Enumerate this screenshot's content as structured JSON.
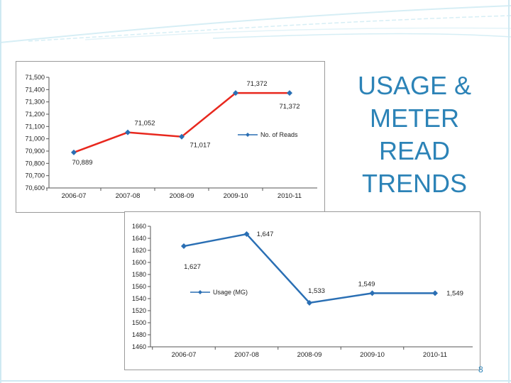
{
  "slide": {
    "title": "USAGE &\nMETER READ\nTRENDS",
    "page_number": "8",
    "accent_color": "#2c83b7",
    "bg_line_color": "#cfe9f2"
  },
  "chart_data": [
    {
      "id": "reads",
      "type": "line",
      "title": "",
      "xlabel": "",
      "ylabel": "",
      "categories": [
        "2006-07",
        "2007-08",
        "2008-09",
        "2009-10",
        "2010-11"
      ],
      "series": [
        {
          "name": "No. of Reads",
          "color": "#e8281e",
          "values": [
            70889,
            71052,
            71017,
            71372,
            71372
          ],
          "labels": [
            "70,889",
            "71,052",
            "71,017",
            "71,372",
            "71,372"
          ]
        }
      ],
      "ylim": [
        70600,
        71500
      ],
      "yticks": [
        70600,
        70700,
        70800,
        70900,
        71000,
        71100,
        71200,
        71300,
        71400,
        71500
      ],
      "ytick_labels": [
        "70,600",
        "70,700",
        "70,800",
        "70,900",
        "71,000",
        "71,100",
        "71,200",
        "71,300",
        "71,400",
        "71,500"
      ],
      "legend": "No. of Reads",
      "grid": false
    },
    {
      "id": "usage",
      "type": "line",
      "title": "",
      "xlabel": "",
      "ylabel": "",
      "categories": [
        "2006-07",
        "2007-08",
        "2008-09",
        "2009-10",
        "2010-11"
      ],
      "series": [
        {
          "name": "Usage (MG)",
          "color": "#2a6fb4",
          "values": [
            1627,
            1647,
            1533,
            1549,
            1549
          ],
          "labels": [
            "1,627",
            "1,647",
            "1,533",
            "1,549",
            "1,549"
          ]
        }
      ],
      "ylim": [
        1460,
        1660
      ],
      "yticks": [
        1460,
        1480,
        1500,
        1520,
        1540,
        1560,
        1580,
        1600,
        1620,
        1640,
        1660
      ],
      "ytick_labels": [
        "1460",
        "1480",
        "1500",
        "1520",
        "1540",
        "1560",
        "1580",
        "1600",
        "1620",
        "1640",
        "1660"
      ],
      "legend": "Usage (MG)",
      "grid": false
    }
  ]
}
